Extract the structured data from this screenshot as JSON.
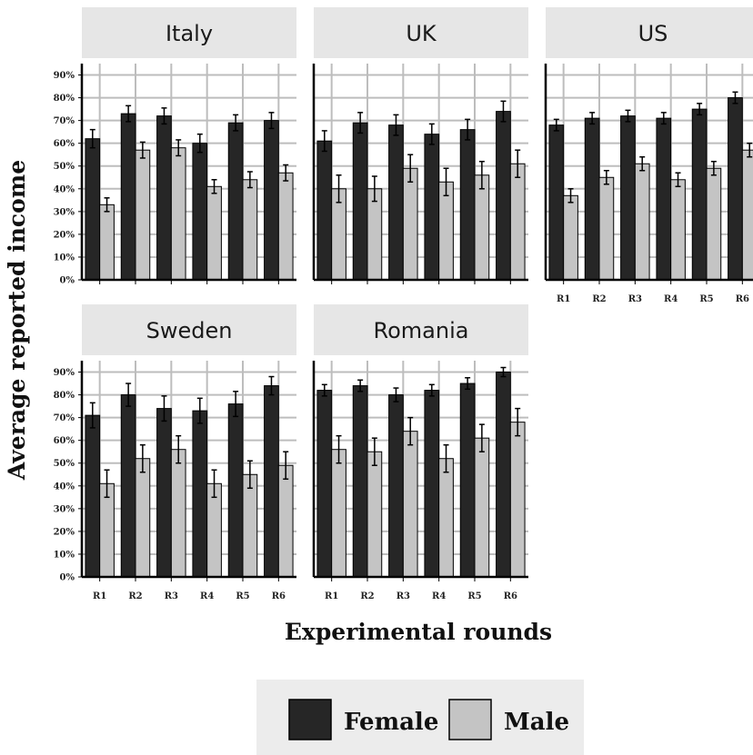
{
  "chart_data": {
    "type": "bar",
    "xlabel": "Experimental rounds",
    "ylabel": "Average reported income",
    "categories": [
      "R1",
      "R2",
      "R3",
      "R4",
      "R5",
      "R6"
    ],
    "y_ticks": [
      "0%",
      "10%",
      "20%",
      "30%",
      "40%",
      "50%",
      "60%",
      "70%",
      "80%",
      "90%"
    ],
    "ylim": [
      0,
      0.95
    ],
    "grid": true,
    "legend_position": "bottom",
    "legend": [
      {
        "label": "Female",
        "color": "#262626"
      },
      {
        "label": "Male",
        "color": "#c4c4c4"
      }
    ],
    "panels": [
      {
        "title": "Italy",
        "series": [
          {
            "name": "Female",
            "values": [
              0.62,
              0.73,
              0.72,
              0.6,
              0.69,
              0.7
            ],
            "errors": [
              0.04,
              0.035,
              0.035,
              0.04,
              0.035,
              0.035
            ]
          },
          {
            "name": "Male",
            "values": [
              0.33,
              0.57,
              0.58,
              0.41,
              0.44,
              0.47
            ],
            "errors": [
              0.03,
              0.035,
              0.035,
              0.03,
              0.035,
              0.035
            ]
          }
        ]
      },
      {
        "title": "UK",
        "series": [
          {
            "name": "Female",
            "values": [
              0.61,
              0.69,
              0.68,
              0.64,
              0.66,
              0.74
            ],
            "errors": [
              0.045,
              0.045,
              0.045,
              0.045,
              0.045,
              0.045
            ]
          },
          {
            "name": "Male",
            "values": [
              0.4,
              0.4,
              0.49,
              0.43,
              0.46,
              0.51
            ],
            "errors": [
              0.06,
              0.055,
              0.06,
              0.06,
              0.06,
              0.06
            ]
          }
        ]
      },
      {
        "title": "US",
        "series": [
          {
            "name": "Female",
            "values": [
              0.68,
              0.71,
              0.72,
              0.71,
              0.75,
              0.8
            ],
            "errors": [
              0.025,
              0.025,
              0.025,
              0.025,
              0.025,
              0.025
            ]
          },
          {
            "name": "Male",
            "values": [
              0.37,
              0.45,
              0.51,
              0.44,
              0.49,
              0.57
            ],
            "errors": [
              0.03,
              0.03,
              0.03,
              0.03,
              0.03,
              0.03
            ]
          }
        ]
      },
      {
        "title": "Sweden",
        "series": [
          {
            "name": "Female",
            "values": [
              0.71,
              0.8,
              0.74,
              0.73,
              0.76,
              0.84
            ],
            "errors": [
              0.055,
              0.05,
              0.055,
              0.055,
              0.055,
              0.04
            ]
          },
          {
            "name": "Male",
            "values": [
              0.41,
              0.52,
              0.56,
              0.41,
              0.45,
              0.49
            ],
            "errors": [
              0.06,
              0.06,
              0.06,
              0.06,
              0.06,
              0.06
            ]
          }
        ]
      },
      {
        "title": "Romania",
        "series": [
          {
            "name": "Female",
            "values": [
              0.82,
              0.84,
              0.8,
              0.82,
              0.85,
              0.9
            ],
            "errors": [
              0.025,
              0.025,
              0.03,
              0.025,
              0.025,
              0.02
            ]
          },
          {
            "name": "Male",
            "values": [
              0.56,
              0.55,
              0.64,
              0.52,
              0.61,
              0.68
            ],
            "errors": [
              0.06,
              0.06,
              0.06,
              0.06,
              0.06,
              0.06
            ]
          }
        ]
      }
    ]
  }
}
